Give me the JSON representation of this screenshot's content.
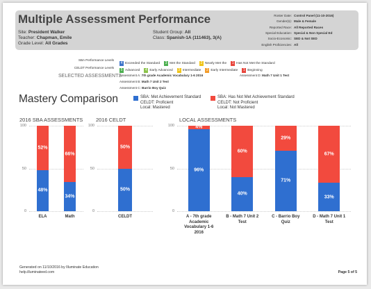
{
  "header": {
    "title": "Multiple Assessment Performance",
    "site": {
      "label": "Site:",
      "value": "President Walker"
    },
    "teacher": {
      "label": "Teacher:",
      "value": "Chapman, Emile"
    },
    "grade": {
      "label": "Grade Level:",
      "value": "All Grades"
    },
    "group": {
      "label": "Student Group:",
      "value": "All"
    },
    "class": {
      "label": "Class:",
      "value": "Spanish-1A (111463), 3(A)"
    },
    "roster": [
      {
        "label": "Roster Date:",
        "value": "Control Panel (11-10-2016)"
      },
      {
        "label": "Gender(s):",
        "value": "Male & Female"
      },
      {
        "label": "Reported Race:",
        "value": "All Reported Races"
      },
      {
        "label": "Special Education:",
        "value": "Special & Non Special Ed"
      },
      {
        "label": "Socio-Economic:",
        "value": "SED & Not SED"
      },
      {
        "label": "English Proficiencies:",
        "value": "All"
      }
    ]
  },
  "levels": [
    {
      "label": "SBA Performance Levels",
      "items": [
        {
          "num": "4",
          "text": "Exceeded the Standard",
          "color": "#3d74c9"
        },
        {
          "num": "3",
          "text": "Met the Standard",
          "color": "#4caf50"
        },
        {
          "num": "2",
          "text": "Nearly Met the",
          "color": "#f0c419"
        },
        {
          "num": "1",
          "text": "Has Not Met the Standard",
          "color": "#e8453c"
        }
      ]
    },
    {
      "label": "CELDT Performance Levels",
      "items": [
        {
          "num": "5",
          "text": "Advanced",
          "color": "#4caf50"
        },
        {
          "num": "4",
          "text": "Early Advanced",
          "color": "#8bc34a"
        },
        {
          "num": "3",
          "text": "Intermediate",
          "color": "#f0c419"
        },
        {
          "num": "2",
          "text": "Early Intermediate",
          "color": "#f39c2a"
        },
        {
          "num": "1",
          "text": "Beginning",
          "color": "#e8453c"
        }
      ]
    }
  ],
  "selected": {
    "label": "SELECTED ASSESSMENTS",
    "items": [
      {
        "label": "Assessment A:",
        "value": "7th grade Academic Vocabulary 1-6 2016"
      },
      {
        "label": "Assessment B:",
        "value": "Math 7 Unit 2 Test"
      },
      {
        "label": "Assessment C:",
        "value": "Barrio Boy Quiz"
      },
      {
        "label": "Assessment D:",
        "value": "Math 7 Unit 1 Test"
      }
    ]
  },
  "section_title": "Mastery Comparison",
  "legend": [
    {
      "color": "#2f6fd0",
      "lines": [
        "SBA: Met Achievement Standard",
        "CELDT: Proficient",
        "Local: Mastered"
      ]
    },
    {
      "color": "#f24a3e",
      "lines": [
        "SBA: Has Not Met Achievement Standard",
        "CELDT: Not Proficient",
        "Local: Not Mastered"
      ]
    }
  ],
  "chart_data": [
    {
      "type": "bar",
      "stacked": true,
      "title": "2016 SBA ASSESSMENTS",
      "categories": [
        "ELA",
        "Math"
      ],
      "series": [
        {
          "color": "#2f6fd0",
          "values": [
            48,
            34
          ],
          "value_labels": [
            "48%",
            "34%"
          ]
        },
        {
          "color": "#f24a3e",
          "values": [
            52,
            66
          ],
          "value_labels": [
            "52%",
            "66%"
          ]
        }
      ],
      "ylim": [
        0,
        100
      ],
      "yticks": [
        0,
        50,
        100
      ],
      "grid": true
    },
    {
      "type": "bar",
      "stacked": true,
      "title": "2016 CELDT",
      "categories": [
        "CELDT"
      ],
      "series": [
        {
          "color": "#2f6fd0",
          "values": [
            50
          ],
          "value_labels": [
            "50%"
          ]
        },
        {
          "color": "#f24a3e",
          "values": [
            50
          ],
          "value_labels": [
            "50%"
          ]
        }
      ],
      "ylim": [
        0,
        100
      ],
      "yticks": [
        0,
        50,
        100
      ],
      "grid": true
    },
    {
      "type": "bar",
      "stacked": true,
      "title": "LOCAL ASSESSMENTS",
      "categories": [
        "A - 7th grade Academic Vocabulary 1-6 2016",
        "B - Math 7 Unit 2 Test",
        "C - Barrio Boy Quiz",
        "D - Math 7 Unit 1 Test"
      ],
      "series": [
        {
          "color": "#2f6fd0",
          "values": [
            96,
            40,
            71,
            33
          ],
          "value_labels": [
            "96%",
            "40%",
            "71%",
            "33%"
          ]
        },
        {
          "color": "#f24a3e",
          "values": [
            4,
            60,
            29,
            67
          ],
          "value_labels": [
            "4%",
            "60%",
            "29%",
            "67%"
          ]
        }
      ],
      "ylim": [
        0,
        100
      ],
      "yticks": [
        0,
        50,
        100
      ],
      "grid": true
    }
  ],
  "footer": {
    "generated": "Generated on 11/10/2016 by Illuminate Education",
    "help": "help.illuminateed.com",
    "page": "Page 5 of 5"
  }
}
